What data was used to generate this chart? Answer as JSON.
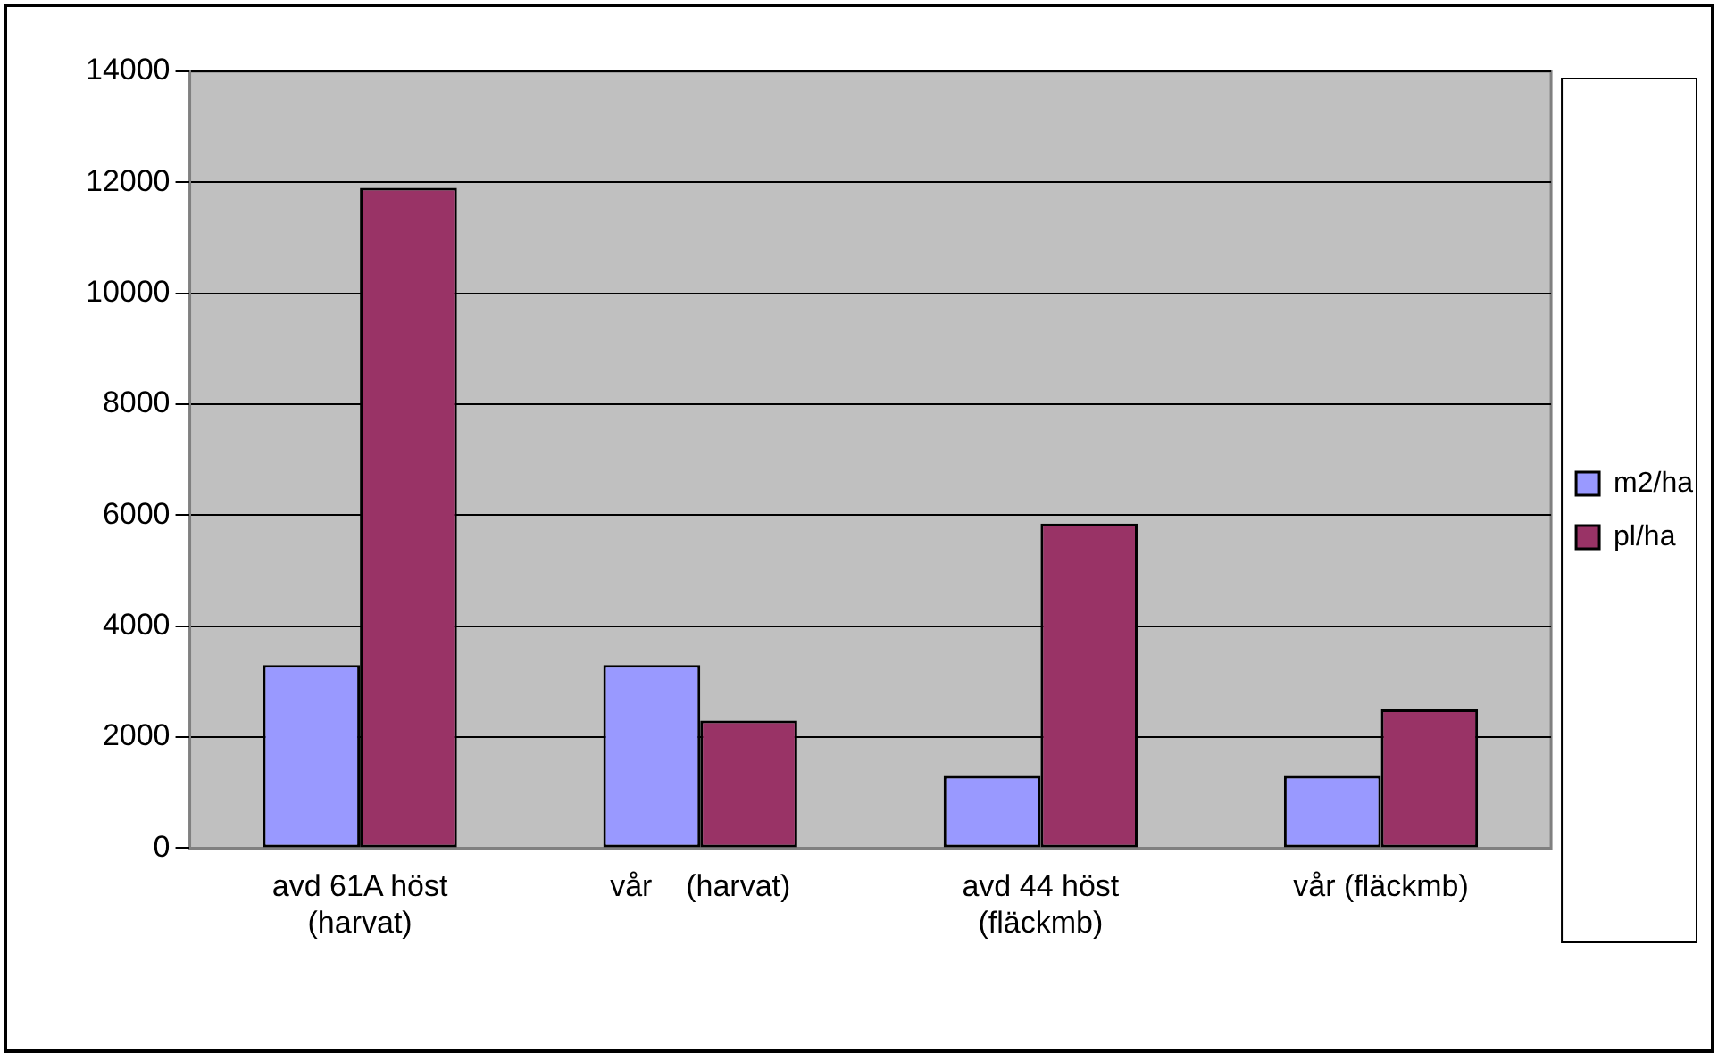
{
  "chart_data": {
    "type": "bar",
    "categories": [
      "avd 61A höst (harvat)",
      "vår    (harvat)",
      "avd 44 höst (fläckmb)",
      "vår (fläckmb)"
    ],
    "series": [
      {
        "name": "m2/ha",
        "color": "#9999ff",
        "values": [
          3300,
          3300,
          1300,
          1300
        ]
      },
      {
        "name": "pl/ha",
        "color": "#993366",
        "values": [
          11900,
          2300,
          5850,
          2500
        ]
      }
    ],
    "ylim": [
      0,
      14000
    ],
    "yticks": [
      0,
      2000,
      4000,
      6000,
      8000,
      10000,
      12000,
      14000
    ],
    "grid": "y",
    "legend": "right"
  }
}
